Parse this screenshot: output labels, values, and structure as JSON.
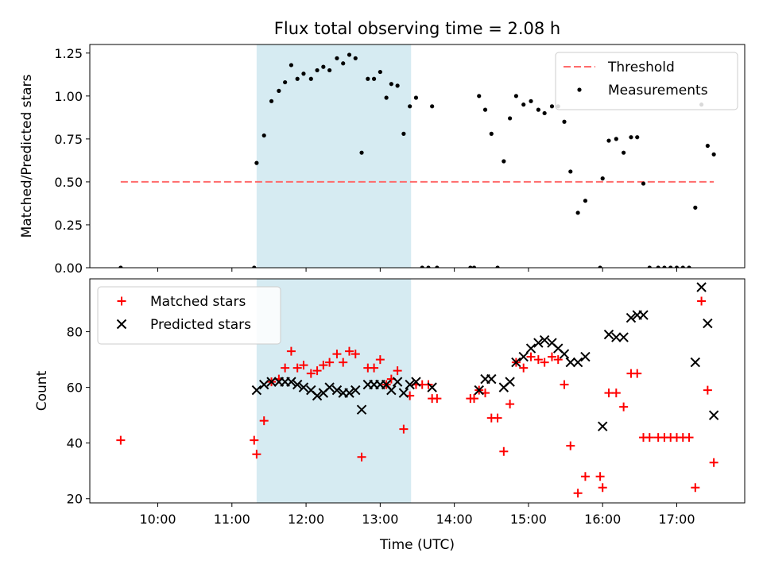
{
  "title": "Flux total observing time = 2.08 h",
  "xlabel": "Time (UTC)",
  "shaded_band": {
    "start": "11:20",
    "end": "13:25",
    "color": "#add8e6"
  },
  "chart_data": [
    {
      "type": "scatter",
      "panel": "top",
      "ylabel": "Matched/Predicted stars",
      "ylim": [
        0,
        1.3
      ],
      "yticks": [
        "0.00",
        "0.25",
        "0.50",
        "0.75",
        "1.00",
        "1.25"
      ],
      "yticks_values": [
        0,
        0.25,
        0.5,
        0.75,
        1.0,
        1.25
      ],
      "legend_position": "top-right",
      "threshold": {
        "name": "Threshold",
        "value": 0.5,
        "x_start": "09:30",
        "x_end": "17:30",
        "color": "#ff6b6b"
      },
      "series": [
        {
          "name": "Measurements",
          "color": "#000000",
          "points": [
            [
              "09:30",
              0.0
            ],
            [
              "11:18",
              0.0
            ],
            [
              "11:20",
              0.61
            ],
            [
              "11:26",
              0.77
            ],
            [
              "11:32",
              0.97
            ],
            [
              "11:38",
              1.03
            ],
            [
              "11:43",
              1.08
            ],
            [
              "11:48",
              1.18
            ],
            [
              "11:53",
              1.1
            ],
            [
              "11:58",
              1.13
            ],
            [
              "12:04",
              1.1
            ],
            [
              "12:09",
              1.15
            ],
            [
              "12:14",
              1.17
            ],
            [
              "12:19",
              1.15
            ],
            [
              "12:25",
              1.22
            ],
            [
              "12:30",
              1.19
            ],
            [
              "12:35",
              1.24
            ],
            [
              "12:40",
              1.22
            ],
            [
              "12:45",
              0.67
            ],
            [
              "12:50",
              1.1
            ],
            [
              "12:55",
              1.1
            ],
            [
              "13:00",
              1.14
            ],
            [
              "13:05",
              0.99
            ],
            [
              "13:09",
              1.07
            ],
            [
              "13:14",
              1.06
            ],
            [
              "13:19",
              0.78
            ],
            [
              "13:24",
              0.94
            ],
            [
              "13:29",
              0.99
            ],
            [
              "13:34",
              0.0
            ],
            [
              "13:39",
              0.0
            ],
            [
              "13:42",
              0.94
            ],
            [
              "13:46",
              0.0
            ],
            [
              "14:13",
              0.0
            ],
            [
              "14:16",
              0.0
            ],
            [
              "14:20",
              1.0
            ],
            [
              "14:25",
              0.92
            ],
            [
              "14:30",
              0.78
            ],
            [
              "14:35",
              0.0
            ],
            [
              "14:40",
              0.62
            ],
            [
              "14:45",
              0.87
            ],
            [
              "14:50",
              1.0
            ],
            [
              "14:56",
              0.95
            ],
            [
              "15:02",
              0.97
            ],
            [
              "15:08",
              0.92
            ],
            [
              "15:13",
              0.9
            ],
            [
              "15:19",
              0.94
            ],
            [
              "15:24",
              0.94
            ],
            [
              "15:29",
              0.85
            ],
            [
              "15:34",
              0.56
            ],
            [
              "15:40",
              0.32
            ],
            [
              "15:46",
              0.39
            ],
            [
              "15:58",
              0.0
            ],
            [
              "16:00",
              0.52
            ],
            [
              "16:05",
              0.74
            ],
            [
              "16:11",
              0.75
            ],
            [
              "16:17",
              0.67
            ],
            [
              "16:23",
              0.76
            ],
            [
              "16:28",
              0.76
            ],
            [
              "16:33",
              0.49
            ],
            [
              "16:38",
              0.0
            ],
            [
              "16:45",
              0.0
            ],
            [
              "16:50",
              0.0
            ],
            [
              "16:55",
              0.0
            ],
            [
              "17:00",
              0.0
            ],
            [
              "17:05",
              0.0
            ],
            [
              "17:10",
              0.0
            ],
            [
              "17:15",
              0.35
            ],
            [
              "17:20",
              0.95
            ],
            [
              "17:25",
              0.71
            ],
            [
              "17:30",
              0.66
            ]
          ]
        }
      ]
    },
    {
      "type": "scatter",
      "panel": "bottom",
      "ylabel": "Count",
      "ylim": [
        18.5,
        99
      ],
      "yticks": [
        "20",
        "40",
        "60",
        "80"
      ],
      "yticks_values": [
        20,
        40,
        60,
        80
      ],
      "xticks": [
        "10:00",
        "11:00",
        "12:00",
        "13:00",
        "14:00",
        "15:00",
        "16:00",
        "17:00"
      ],
      "xlim": [
        "09:05",
        "17:55"
      ],
      "legend_position": "top-left",
      "series": [
        {
          "name": "Matched stars",
          "marker": "plus",
          "color": "#ff0000",
          "points": [
            [
              "09:30",
              41
            ],
            [
              "11:18",
              41
            ],
            [
              "11:20",
              36
            ],
            [
              "11:26",
              48
            ],
            [
              "11:32",
              62
            ],
            [
              "11:38",
              63
            ],
            [
              "11:43",
              67
            ],
            [
              "11:48",
              73
            ],
            [
              "11:53",
              67
            ],
            [
              "11:58",
              68
            ],
            [
              "12:04",
              65
            ],
            [
              "12:09",
              66
            ],
            [
              "12:14",
              68
            ],
            [
              "12:19",
              69
            ],
            [
              "12:25",
              72
            ],
            [
              "12:30",
              69
            ],
            [
              "12:35",
              73
            ],
            [
              "12:40",
              72
            ],
            [
              "12:45",
              35
            ],
            [
              "12:50",
              67
            ],
            [
              "12:55",
              67
            ],
            [
              "13:00",
              70
            ],
            [
              "13:05",
              61
            ],
            [
              "13:09",
              63
            ],
            [
              "13:14",
              66
            ],
            [
              "13:19",
              45
            ],
            [
              "13:24",
              57
            ],
            [
              "13:29",
              61
            ],
            [
              "13:34",
              61
            ],
            [
              "13:39",
              61
            ],
            [
              "13:42",
              56
            ],
            [
              "13:46",
              56
            ],
            [
              "14:13",
              56
            ],
            [
              "14:16",
              56
            ],
            [
              "14:20",
              59
            ],
            [
              "14:25",
              58
            ],
            [
              "14:30",
              49
            ],
            [
              "14:35",
              49
            ],
            [
              "14:40",
              37
            ],
            [
              "14:45",
              54
            ],
            [
              "14:50",
              69
            ],
            [
              "14:56",
              67
            ],
            [
              "15:02",
              71
            ],
            [
              "15:08",
              70
            ],
            [
              "15:13",
              69
            ],
            [
              "15:19",
              71
            ],
            [
              "15:24",
              70
            ],
            [
              "15:29",
              61
            ],
            [
              "15:34",
              39
            ],
            [
              "15:40",
              22
            ],
            [
              "15:46",
              28
            ],
            [
              "15:58",
              28
            ],
            [
              "16:00",
              24
            ],
            [
              "16:05",
              58
            ],
            [
              "16:11",
              58
            ],
            [
              "16:17",
              53
            ],
            [
              "16:23",
              65
            ],
            [
              "16:28",
              65
            ],
            [
              "16:33",
              42
            ],
            [
              "16:38",
              42
            ],
            [
              "16:45",
              42
            ],
            [
              "16:50",
              42
            ],
            [
              "16:55",
              42
            ],
            [
              "17:00",
              42
            ],
            [
              "17:05",
              42
            ],
            [
              "17:10",
              42
            ],
            [
              "17:15",
              24
            ],
            [
              "17:20",
              91
            ],
            [
              "17:25",
              59
            ],
            [
              "17:30",
              33
            ]
          ]
        },
        {
          "name": "Predicted stars",
          "marker": "x",
          "color": "#000000",
          "points": [
            [
              "11:20",
              59
            ],
            [
              "11:26",
              61
            ],
            [
              "11:32",
              62
            ],
            [
              "11:38",
              62
            ],
            [
              "11:43",
              62
            ],
            [
              "11:48",
              62
            ],
            [
              "11:53",
              61
            ],
            [
              "11:58",
              60
            ],
            [
              "12:04",
              59
            ],
            [
              "12:09",
              57
            ],
            [
              "12:14",
              58
            ],
            [
              "12:19",
              60
            ],
            [
              "12:25",
              59
            ],
            [
              "12:30",
              58
            ],
            [
              "12:35",
              58
            ],
            [
              "12:40",
              59
            ],
            [
              "12:45",
              52
            ],
            [
              "12:50",
              61
            ],
            [
              "12:55",
              61
            ],
            [
              "13:00",
              61
            ],
            [
              "13:05",
              61
            ],
            [
              "13:09",
              59
            ],
            [
              "13:14",
              62
            ],
            [
              "13:19",
              58
            ],
            [
              "13:24",
              61
            ],
            [
              "13:29",
              62
            ],
            [
              "13:42",
              60
            ],
            [
              "14:20",
              59
            ],
            [
              "14:25",
              63
            ],
            [
              "14:30",
              63
            ],
            [
              "14:40",
              60
            ],
            [
              "14:45",
              62
            ],
            [
              "14:50",
              69
            ],
            [
              "14:56",
              71
            ],
            [
              "15:02",
              74
            ],
            [
              "15:08",
              76
            ],
            [
              "15:13",
              77
            ],
            [
              "15:19",
              76
            ],
            [
              "15:24",
              74
            ],
            [
              "15:29",
              72
            ],
            [
              "15:34",
              69
            ],
            [
              "15:40",
              69
            ],
            [
              "15:46",
              71
            ],
            [
              "16:00",
              46
            ],
            [
              "16:05",
              79
            ],
            [
              "16:11",
              78
            ],
            [
              "16:17",
              78
            ],
            [
              "16:23",
              85
            ],
            [
              "16:28",
              86
            ],
            [
              "16:33",
              86
            ],
            [
              "17:15",
              69
            ],
            [
              "17:20",
              96
            ],
            [
              "17:25",
              83
            ],
            [
              "17:30",
              50
            ]
          ]
        }
      ]
    }
  ]
}
